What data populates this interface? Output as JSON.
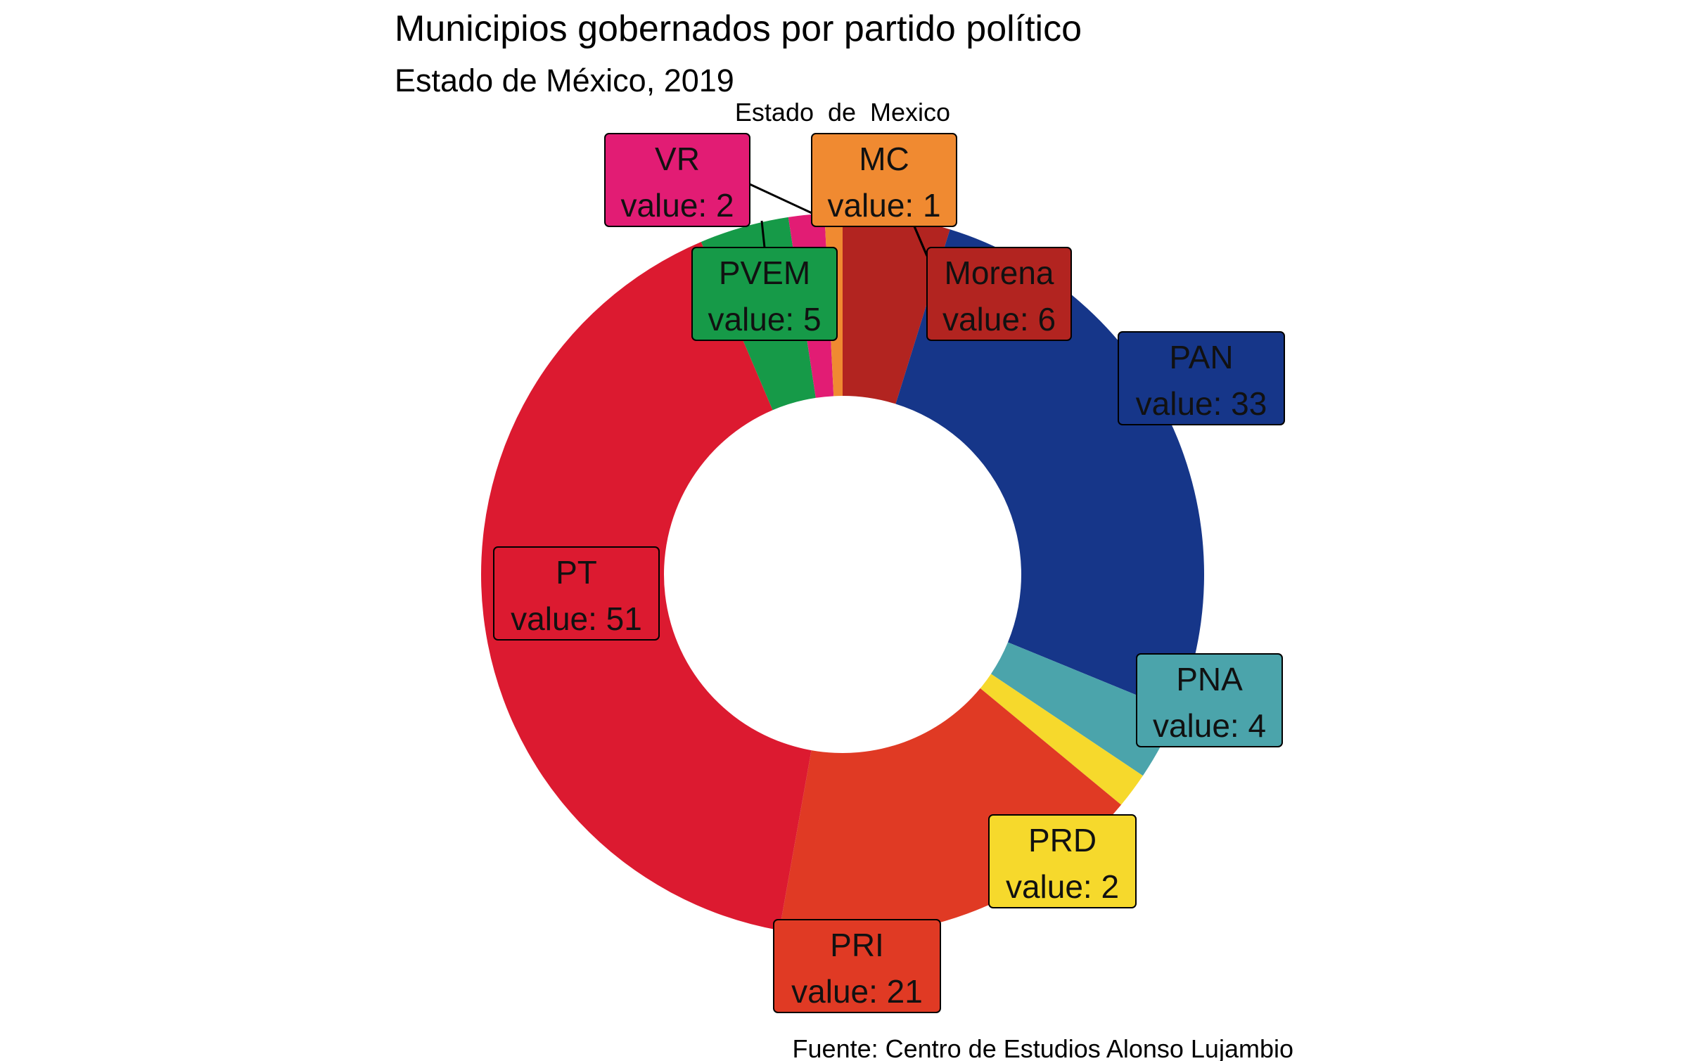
{
  "chart_data": {
    "type": "pie",
    "title": "Municipios gobernados por partido político",
    "subtitle": "Estado de México, 2019",
    "facet_label": "Estado  de  Mexico",
    "caption": "Fuente: Centro de Estudios Alonso Lujambio",
    "value_prefix": "value: ",
    "donut": true,
    "start": "top",
    "direction": "clockwise",
    "slices": [
      {
        "label": "Morena",
        "value": 6,
        "color": "#B22420"
      },
      {
        "label": "PAN",
        "value": 33,
        "color": "#163689"
      },
      {
        "label": "PNA",
        "value": 4,
        "color": "#4BA4AB"
      },
      {
        "label": "PRD",
        "value": 2,
        "color": "#F6D92C"
      },
      {
        "label": "PRI",
        "value": 21,
        "color": "#E03A24"
      },
      {
        "label": "PT",
        "value": 51,
        "color": "#DC1A30"
      },
      {
        "label": "PVEM",
        "value": 5,
        "color": "#169A48"
      },
      {
        "label": "VR",
        "value": 2,
        "color": "#E21C74"
      },
      {
        "label": "MC",
        "value": 1,
        "color": "#F08A31"
      }
    ]
  }
}
